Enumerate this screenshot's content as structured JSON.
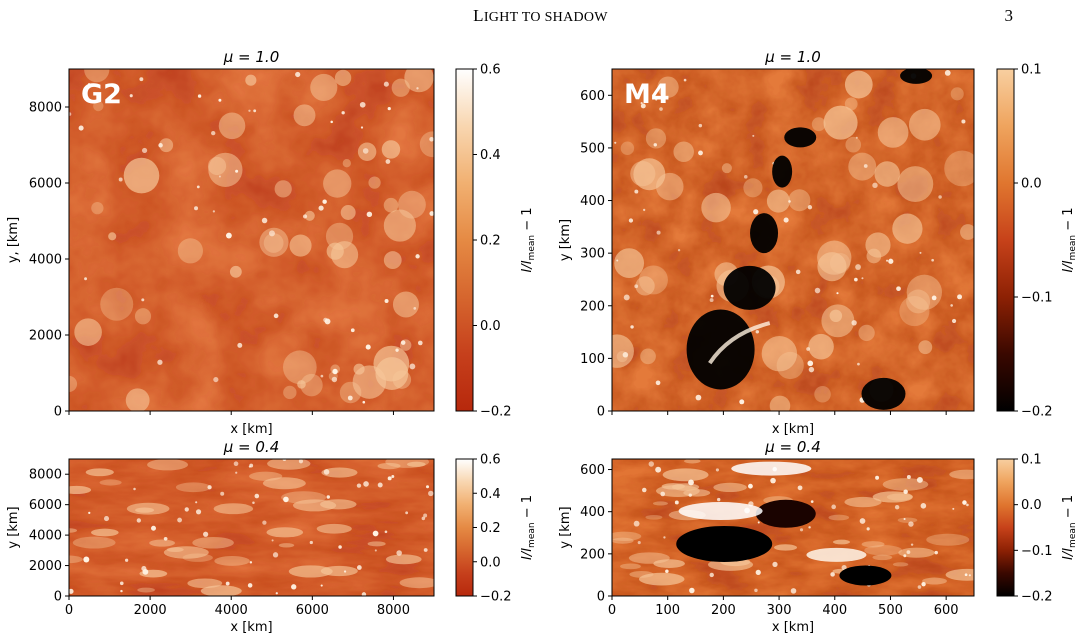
{
  "header": {
    "running_title_cap": "L",
    "running_title_rest": "IGHT TO SHADOW",
    "page_number": "3"
  },
  "figure": {
    "gradient_g2": [
      "#b7280c",
      "#c6401c",
      "#d6662e",
      "#e58a44",
      "#f1b071",
      "#f8d6b0",
      "#ffffff"
    ],
    "gradient_m4": [
      "#000000",
      "#3a0800",
      "#8d2104",
      "#c7421a",
      "#e0762f",
      "#efa45e",
      "#f8cfa0"
    ],
    "panels": [
      {
        "id": "g2-top",
        "title": "μ = 1.0",
        "label": "G2",
        "xlabel": "x [km]",
        "ylabel": "y, [km]",
        "x_ticks": [],
        "y_ticks": [
          "0",
          "2000",
          "4000",
          "6000",
          "8000"
        ],
        "colorbar_ticks": [
          "0.6",
          "0.4",
          "0.2",
          "0.0",
          "−0.2"
        ],
        "colorbar_label": "I/I_mean − 1"
      },
      {
        "id": "m4-top",
        "title": "μ = 1.0",
        "label": "M4",
        "xlabel": "x [km]",
        "ylabel": "y [km]",
        "x_ticks": [],
        "y_ticks": [
          "0",
          "100",
          "200",
          "300",
          "400",
          "500",
          "600"
        ],
        "colorbar_ticks": [
          "0.1",
          "0.0",
          "−0.1",
          "−0.2"
        ],
        "colorbar_label": "I/I_mean − 1"
      },
      {
        "id": "g2-bottom",
        "title": "μ = 0.4",
        "label": "",
        "xlabel": "x [km]",
        "ylabel": "y [km]",
        "x_ticks": [
          "0",
          "2000",
          "4000",
          "6000",
          "8000"
        ],
        "y_ticks": [
          "0",
          "2000",
          "4000",
          "6000",
          "8000"
        ],
        "colorbar_ticks": [
          "0.6",
          "0.4",
          "0.2",
          "0.0",
          "−0.2"
        ],
        "colorbar_label": "I/I_mean − 1"
      },
      {
        "id": "m4-bottom",
        "title": "μ = 0.4",
        "label": "",
        "xlabel": "x [km]",
        "ylabel": "y [km]",
        "x_ticks": [
          "0",
          "100",
          "200",
          "300",
          "400",
          "500",
          "600"
        ],
        "y_ticks": [
          "0",
          "200",
          "400",
          "600"
        ],
        "colorbar_ticks": [
          "0.1",
          "0.0",
          "−0.1",
          "−0.2"
        ],
        "colorbar_label": "I/I_mean − 1"
      }
    ]
  }
}
